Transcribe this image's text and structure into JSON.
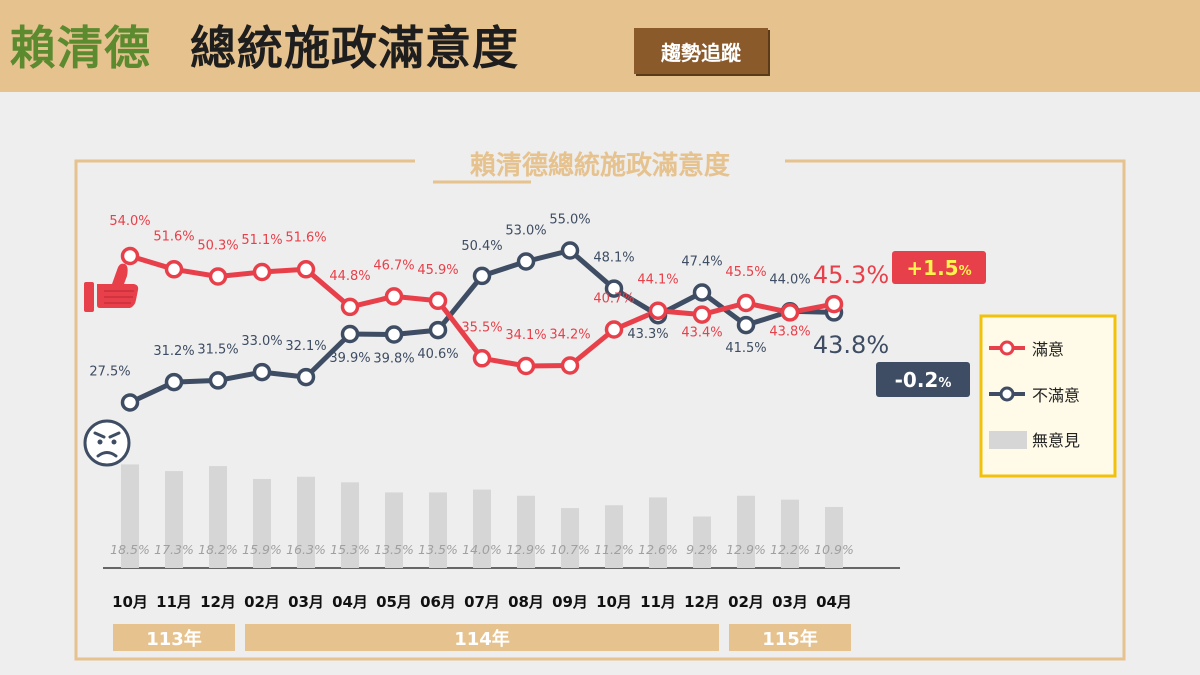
{
  "header": {
    "title_name": "賴清德",
    "title_rest": "總統施政滿意度",
    "tag": "趨勢追蹤"
  },
  "chart_data": {
    "type": "line",
    "title": "賴清德總統施政滿意度",
    "categories": [
      "10月",
      "11月",
      "12月",
      "02月",
      "03月",
      "04月",
      "05月",
      "06月",
      "07月",
      "08月",
      "09月",
      "10月",
      "11月",
      "12月",
      "02月",
      "03月",
      "04月"
    ],
    "years": [
      {
        "label": "113年",
        "from": 0,
        "to": 2
      },
      {
        "label": "114年",
        "from": 3,
        "to": 13
      },
      {
        "label": "115年",
        "from": 14,
        "to": 16
      }
    ],
    "series": [
      {
        "name": "滿意",
        "color": "#e8404a",
        "values": [
          54.0,
          51.6,
          50.3,
          51.1,
          51.6,
          44.8,
          46.7,
          45.9,
          35.5,
          34.1,
          34.2,
          40.7,
          44.1,
          43.4,
          45.5,
          43.8,
          45.3
        ],
        "labels": [
          "54.0%",
          "51.6%",
          "50.3%",
          "51.1%",
          "51.6%",
          "44.8%",
          "46.7%",
          "45.9%",
          "35.5%",
          "34.1%",
          "34.2%",
          "40.7%",
          "44.1%",
          "43.4%",
          "45.5%",
          "43.8%",
          "45.3%"
        ]
      },
      {
        "name": "不滿意",
        "color": "#3e4d63",
        "values": [
          27.5,
          31.2,
          31.5,
          33.0,
          32.1,
          39.9,
          39.8,
          40.6,
          50.4,
          53.0,
          55.0,
          48.1,
          43.3,
          47.4,
          41.5,
          44.0,
          43.8
        ],
        "labels": [
          "27.5%",
          "31.2%",
          "31.5%",
          "33.0%",
          "32.1%",
          "39.9%",
          "39.8%",
          "40.6%",
          "50.4%",
          "53.0%",
          "55.0%",
          "48.1%",
          "43.3%",
          "47.4%",
          "41.5%",
          "44.0%",
          "43.8%"
        ]
      },
      {
        "name": "無意見",
        "color": "#d6d6d6",
        "type": "bar",
        "values": [
          18.5,
          17.3,
          18.2,
          15.9,
          16.3,
          15.3,
          13.5,
          13.5,
          14.0,
          12.9,
          10.7,
          11.2,
          12.6,
          9.2,
          12.9,
          12.2,
          10.9
        ],
        "labels": [
          "18.5%",
          "17.3%",
          "18.2%",
          "15.9%",
          "16.3%",
          "15.3%",
          "13.5%",
          "13.5%",
          "14.0%",
          "12.9%",
          "10.7%",
          "11.2%",
          "12.6%",
          "9.2%",
          "12.9%",
          "12.2%",
          "10.9%"
        ]
      }
    ],
    "changes": {
      "satisfied": "+1.5",
      "dissatisfied": "-0.2",
      "unit": "%"
    },
    "legend_position": "right"
  }
}
